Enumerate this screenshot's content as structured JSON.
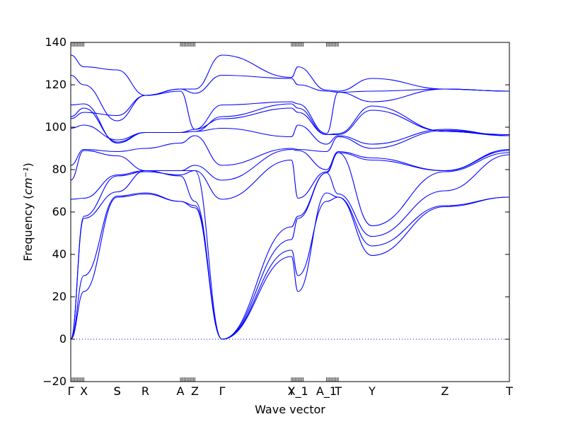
{
  "chart_data": {
    "type": "line",
    "title": "",
    "xlabel": "Wave vector",
    "ylabel": "Frequency",
    "ylabel_unit": "cm⁻¹",
    "ylim": [
      -20,
      140
    ],
    "xlim": [
      0,
      100
    ],
    "y_ticks": [
      -20,
      0,
      20,
      40,
      60,
      80,
      100,
      120,
      140
    ],
    "grid": false,
    "legend": "none",
    "line_color": "#0000ff",
    "zero_reference": {
      "y": 0,
      "style": "dotted"
    },
    "high_symmetry_points": [
      {
        "label": "Γ",
        "x": 0.0
      },
      {
        "label": "X",
        "x": 3.0
      },
      {
        "label": "S",
        "x": 10.6
      },
      {
        "label": "S",
        "x": 10.6
      },
      {
        "label": "R",
        "x": 17.0
      },
      {
        "label": "A",
        "x": 25.0
      },
      {
        "label": "Z",
        "x": 28.3
      },
      {
        "label": "Γ",
        "x": 34.5
      },
      {
        "label": "Y",
        "x": 50.3
      },
      {
        "label": "X_1",
        "x": 51.8
      },
      {
        "label": "A_1",
        "x": 58.3
      },
      {
        "label": "T",
        "x": 61.0
      },
      {
        "label": "Y",
        "x": 68.7
      },
      {
        "label": "Z",
        "x": 85.3
      },
      {
        "label": "T",
        "x": 100.0
      }
    ],
    "qpoint_tick_clusters": [
      [
        0,
        3
      ],
      [
        25,
        28.3
      ],
      [
        50.3,
        53
      ],
      [
        58.3,
        61
      ]
    ],
    "x_node_positions": [
      0,
      3,
      10.6,
      17,
      25,
      28.3,
      34.5,
      50.3,
      51.8,
      58.3,
      61,
      68.7,
      85.3,
      100
    ],
    "series": [
      {
        "values": [
          0,
          22.5,
          67,
          68.5,
          65,
          62,
          0,
          39,
          22.5,
          69,
          67,
          39.5,
          62.5,
          67
        ]
      },
      {
        "values": [
          0,
          30,
          67.5,
          69,
          65,
          63,
          0,
          42,
          30,
          65,
          67,
          44,
          63,
          67
        ]
      },
      {
        "values": [
          0,
          57,
          69.5,
          79.5,
          77,
          65,
          0,
          47,
          57,
          78.5,
          68.5,
          48.5,
          70,
          87
        ]
      },
      {
        "values": [
          0,
          58,
          77,
          79,
          77.5,
          79.5,
          0,
          53,
          58,
          78.5,
          88,
          53.5,
          79,
          88
        ]
      },
      {
        "values": [
          66,
          66.5,
          77.5,
          79.5,
          79.5,
          79.5,
          66,
          84.5,
          66.5,
          79,
          88,
          84.5,
          79.5,
          89
        ]
      },
      {
        "values": [
          75,
          89,
          86.5,
          79.5,
          79.5,
          82,
          75,
          89.5,
          89,
          80,
          88.5,
          85.5,
          79.5,
          89.5
        ]
      },
      {
        "values": [
          82,
          89.5,
          88.5,
          90,
          92.5,
          96,
          82,
          90,
          89.5,
          88.5,
          95.5,
          90,
          98.5,
          96
        ]
      },
      {
        "values": [
          99.5,
          101,
          94,
          97.5,
          97.5,
          98,
          99.5,
          95.5,
          101,
          92,
          96,
          92,
          99,
          96
        ]
      },
      {
        "values": [
          104,
          107,
          105.5,
          115,
          117,
          99,
          104,
          109,
          107,
          96.5,
          96.5,
          108,
          98,
          96
        ]
      },
      {
        "values": [
          105,
          109,
          93,
          97.5,
          97.5,
          98,
          105,
          111,
          109,
          96.5,
          97,
          110,
          98,
          96.5
        ]
      },
      {
        "values": [
          110.5,
          111,
          92.5,
          97.5,
          97.5,
          99,
          110.5,
          112,
          111,
          97,
          116.5,
          112,
          118,
          117
        ]
      },
      {
        "values": [
          124.5,
          120,
          103,
          115,
          118,
          116,
          124.5,
          123,
          120,
          117,
          116.5,
          117,
          118,
          117
        ]
      },
      {
        "values": [
          134,
          128.5,
          127,
          115,
          118,
          118,
          134,
          123.5,
          128.5,
          117.5,
          117,
          123,
          118,
          117
        ]
      }
    ]
  }
}
